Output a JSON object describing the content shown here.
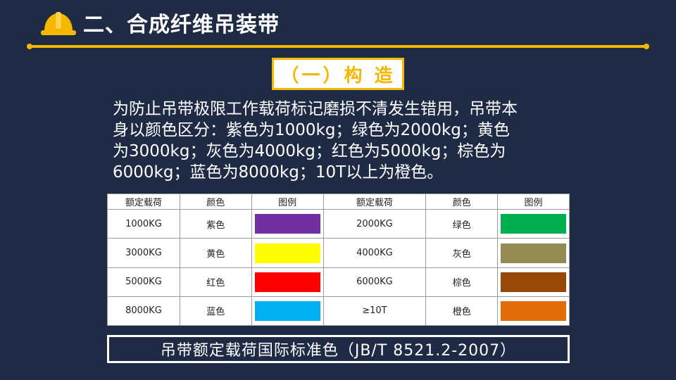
{
  "header": {
    "title": "二、合成纤维吊装带",
    "icon": "hard-hat-icon",
    "accent_color": "#f5b800"
  },
  "section": {
    "label": "（一）构 造"
  },
  "intro": {
    "lines": [
      "为防止吊带极限工作载荷标记磨损不清发生错用，吊带本",
      "身以颜色区分：紫色为1000kg；绿色为2000kg；黄色",
      "为3000kg；灰色为4000kg；红色为5000kg；棕色为",
      "6000kg；蓝色为8000kg；10T以上为橙色。"
    ]
  },
  "table": {
    "headers": [
      "额定载荷",
      "颜色",
      "图例",
      "额定载荷",
      "颜色",
      "图例"
    ],
    "rows": [
      {
        "load_a": "1000KG",
        "color_a": "紫色",
        "hex_a": "#7030a0",
        "load_b": "2000KG",
        "color_b": "绿色",
        "hex_b": "#00b050"
      },
      {
        "load_a": "3000KG",
        "color_a": "黄色",
        "hex_a": "#ffff00",
        "load_b": "4000KG",
        "color_b": "灰色",
        "hex_b": "#948a54"
      },
      {
        "load_a": "5000KG",
        "color_a": "红色",
        "hex_a": "#ff0000",
        "load_b": "6000KG",
        "color_b": "棕色",
        "hex_b": "#974706"
      },
      {
        "load_a": "8000KG",
        "color_a": "蓝色",
        "hex_a": "#00b0f0",
        "load_b": "≥10T",
        "color_b": "橙色",
        "hex_b": "#e36c09"
      }
    ]
  },
  "footer": {
    "caption": "吊带额定载荷国际标准色（JB/T  8521.2-2007）"
  }
}
